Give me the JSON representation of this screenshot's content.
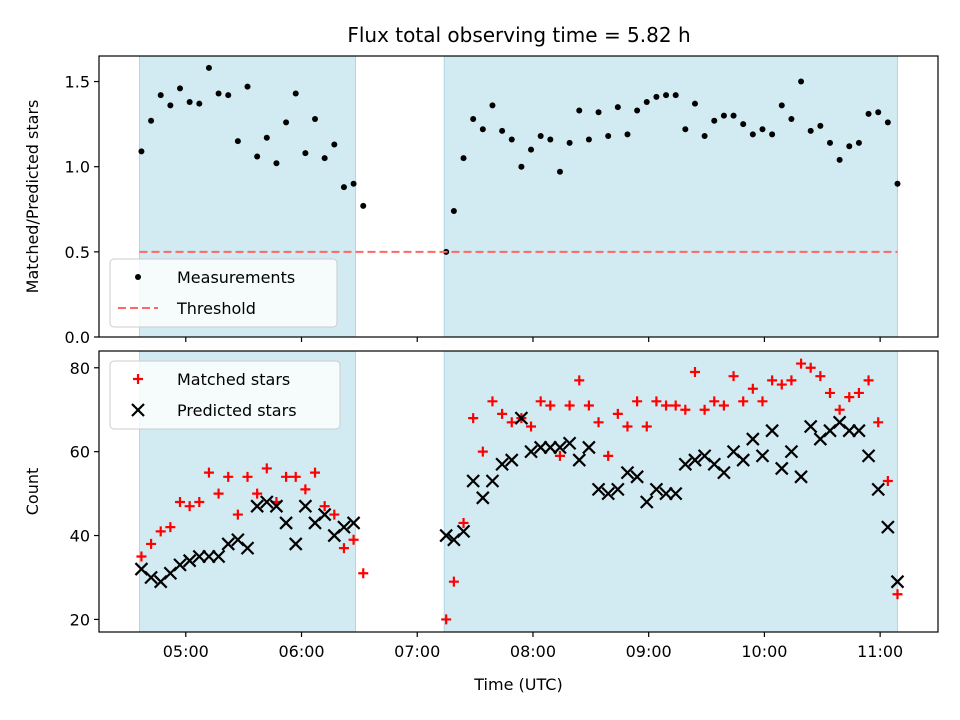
{
  "chart_data": [
    {
      "type": "scatter",
      "title": "Flux total observing time = 5.82 h",
      "xlabel": "",
      "ylabel": "Matched/Predicted stars",
      "ylim": [
        0,
        1.65
      ],
      "yticks": [
        "0.0",
        "0.5",
        "1.0",
        "1.5"
      ],
      "xlim": [
        "04:15",
        "11:30"
      ],
      "legend": {
        "location": "lower-left",
        "entries": [
          "Measurements",
          "Threshold"
        ]
      },
      "shaded_intervals": [
        [
          "04:36",
          "06:28"
        ],
        [
          "07:14",
          "11:09"
        ]
      ],
      "shade_color": "#add8e6",
      "series": [
        {
          "name": "Measurements",
          "color": "#000000",
          "marker": "dot",
          "x": [
            "04:37",
            "04:42",
            "04:47",
            "04:52",
            "04:57",
            "05:02",
            "05:07",
            "05:12",
            "05:17",
            "05:22",
            "05:27",
            "05:32",
            "05:37",
            "05:42",
            "05:47",
            "05:52",
            "05:57",
            "06:02",
            "06:07",
            "06:12",
            "06:17",
            "06:22",
            "06:27",
            "06:32",
            "07:15",
            "07:19",
            "07:24",
            "07:29",
            "07:34",
            "07:39",
            "07:44",
            "07:49",
            "07:54",
            "07:59",
            "08:04",
            "08:09",
            "08:14",
            "08:19",
            "08:24",
            "08:29",
            "08:34",
            "08:39",
            "08:44",
            "08:49",
            "08:54",
            "08:59",
            "09:04",
            "09:09",
            "09:14",
            "09:19",
            "09:24",
            "09:29",
            "09:34",
            "09:39",
            "09:44",
            "09:49",
            "09:54",
            "09:59",
            "10:04",
            "10:09",
            "10:14",
            "10:19",
            "10:24",
            "10:29",
            "10:34",
            "10:39",
            "10:44",
            "10:49",
            "10:54",
            "10:59",
            "11:04",
            "11:09"
          ],
          "y": [
            1.09,
            1.27,
            1.42,
            1.36,
            1.46,
            1.38,
            1.37,
            1.58,
            1.43,
            1.42,
            1.15,
            1.47,
            1.06,
            1.17,
            1.02,
            1.26,
            1.43,
            1.08,
            1.28,
            1.05,
            1.13,
            0.88,
            0.9,
            0.77,
            0.5,
            0.74,
            1.05,
            1.28,
            1.22,
            1.36,
            1.21,
            1.16,
            1.0,
            1.1,
            1.18,
            1.16,
            0.97,
            1.14,
            1.33,
            1.16,
            1.32,
            1.18,
            1.35,
            1.19,
            1.33,
            1.38,
            1.41,
            1.42,
            1.42,
            1.22,
            1.37,
            1.18,
            1.27,
            1.3,
            1.3,
            1.25,
            1.19,
            1.22,
            1.19,
            1.36,
            1.28,
            1.5,
            1.21,
            1.24,
            1.14,
            1.04,
            1.12,
            1.14,
            1.31,
            1.32,
            1.26,
            0.9
          ]
        },
        {
          "name": "Threshold",
          "color": "#ff6666",
          "style": "dashed",
          "x": [
            "04:36",
            "11:09"
          ],
          "y": [
            0.5,
            0.5
          ]
        }
      ]
    },
    {
      "type": "scatter",
      "title": "",
      "xlabel": "Time (UTC)",
      "ylabel": "Count",
      "ylim": [
        17,
        84
      ],
      "yticks": [
        "20",
        "40",
        "60",
        "80"
      ],
      "xlim": [
        "04:15",
        "11:30"
      ],
      "xticks": [
        "05:00",
        "06:00",
        "07:00",
        "08:00",
        "09:00",
        "10:00",
        "11:00"
      ],
      "legend": {
        "location": "upper-left",
        "entries": [
          "Matched stars",
          "Predicted stars"
        ]
      },
      "shaded_intervals": [
        [
          "04:36",
          "06:28"
        ],
        [
          "07:14",
          "11:09"
        ]
      ],
      "shade_color": "#add8e6",
      "series": [
        {
          "name": "Matched stars",
          "color": "#ff0000",
          "marker": "plus",
          "x": [
            "04:37",
            "04:42",
            "04:47",
            "04:52",
            "04:57",
            "05:02",
            "05:07",
            "05:12",
            "05:17",
            "05:22",
            "05:27",
            "05:32",
            "05:37",
            "05:42",
            "05:47",
            "05:52",
            "05:57",
            "06:02",
            "06:07",
            "06:12",
            "06:17",
            "06:22",
            "06:27",
            "06:32",
            "07:15",
            "07:19",
            "07:24",
            "07:29",
            "07:34",
            "07:39",
            "07:44",
            "07:49",
            "07:54",
            "07:59",
            "08:04",
            "08:09",
            "08:14",
            "08:19",
            "08:24",
            "08:29",
            "08:34",
            "08:39",
            "08:44",
            "08:49",
            "08:54",
            "08:59",
            "09:04",
            "09:09",
            "09:14",
            "09:19",
            "09:24",
            "09:29",
            "09:34",
            "09:39",
            "09:44",
            "09:49",
            "09:54",
            "09:59",
            "10:04",
            "10:09",
            "10:14",
            "10:19",
            "10:24",
            "10:29",
            "10:34",
            "10:39",
            "10:44",
            "10:49",
            "10:54",
            "10:59",
            "11:04",
            "11:09"
          ],
          "y": [
            35,
            38,
            41,
            42,
            48,
            47,
            48,
            55,
            50,
            54,
            45,
            54,
            50,
            56,
            48,
            54,
            54,
            51,
            55,
            47,
            45,
            37,
            39,
            31,
            20,
            29,
            43,
            68,
            60,
            72,
            69,
            67,
            68,
            66,
            72,
            71,
            59,
            71,
            77,
            71,
            67,
            59,
            69,
            66,
            72,
            66,
            72,
            71,
            71,
            70,
            79,
            70,
            72,
            71,
            78,
            72,
            75,
            72,
            77,
            76,
            77,
            81,
            80,
            78,
            74,
            70,
            73,
            74,
            77,
            67,
            53,
            26
          ]
        },
        {
          "name": "Predicted stars",
          "color": "#000000",
          "marker": "x",
          "x": [
            "04:37",
            "04:42",
            "04:47",
            "04:52",
            "04:57",
            "05:02",
            "05:07",
            "05:12",
            "05:17",
            "05:22",
            "05:27",
            "05:32",
            "05:37",
            "05:42",
            "05:47",
            "05:52",
            "05:57",
            "06:02",
            "06:07",
            "06:12",
            "06:17",
            "06:22",
            "06:27",
            "07:15",
            "07:19",
            "07:24",
            "07:29",
            "07:34",
            "07:39",
            "07:44",
            "07:49",
            "07:54",
            "07:59",
            "08:04",
            "08:09",
            "08:14",
            "08:19",
            "08:24",
            "08:29",
            "08:34",
            "08:39",
            "08:44",
            "08:49",
            "08:54",
            "08:59",
            "09:04",
            "09:09",
            "09:14",
            "09:19",
            "09:24",
            "09:29",
            "09:34",
            "09:39",
            "09:44",
            "09:49",
            "09:54",
            "09:59",
            "10:04",
            "10:09",
            "10:14",
            "10:19",
            "10:24",
            "10:29",
            "10:34",
            "10:39",
            "10:44",
            "10:49",
            "10:54",
            "10:59",
            "11:04",
            "11:09"
          ],
          "y": [
            32,
            30,
            29,
            31,
            33,
            34,
            35,
            35,
            35,
            38,
            39,
            37,
            47,
            48,
            47,
            43,
            38,
            47,
            43,
            45,
            40,
            42,
            43,
            40,
            39,
            41,
            53,
            49,
            53,
            57,
            58,
            68,
            60,
            61,
            61,
            61,
            62,
            58,
            61,
            51,
            50,
            51,
            55,
            54,
            48,
            51,
            50,
            50,
            57,
            58,
            59,
            57,
            55,
            60,
            58,
            63,
            59,
            65,
            56,
            60,
            54,
            66,
            63,
            65,
            67,
            65,
            65,
            59,
            51,
            42,
            29
          ]
        }
      ]
    }
  ]
}
